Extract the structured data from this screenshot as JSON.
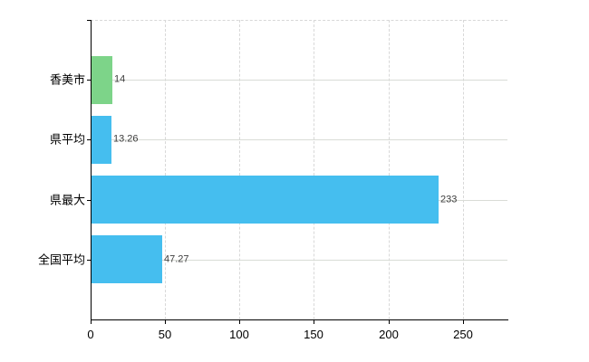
{
  "chart_data": {
    "type": "bar",
    "orientation": "horizontal",
    "title": "",
    "xlabel": "",
    "ylabel": "",
    "categories": [
      "香美市",
      "県平均",
      "県最大",
      "全国平均"
    ],
    "values": [
      14,
      13.26,
      233,
      47.27
    ],
    "value_labels": [
      "14",
      "13.26",
      "233",
      "47.27"
    ],
    "bar_colors": [
      "#7DD489",
      "#45BEEF",
      "#45BEEF",
      "#45BEEF"
    ],
    "xlim": [
      0,
      280
    ],
    "x_ticks": [
      0,
      50,
      100,
      150,
      200,
      250
    ],
    "x_tick_labels": [
      "0",
      "50",
      "100",
      "150",
      "200",
      "250"
    ],
    "grid": true,
    "legend": "none",
    "colors": {
      "bar_green": "#7DD489",
      "bar_blue": "#45BEEF",
      "gridline_vertical": "#D8D8D8",
      "gridline_horizontal": "#D9DCD6",
      "axis": "#000000",
      "category_text": "#000000",
      "value_text": "#3d3d3d",
      "background": "#FFFFFF"
    }
  }
}
